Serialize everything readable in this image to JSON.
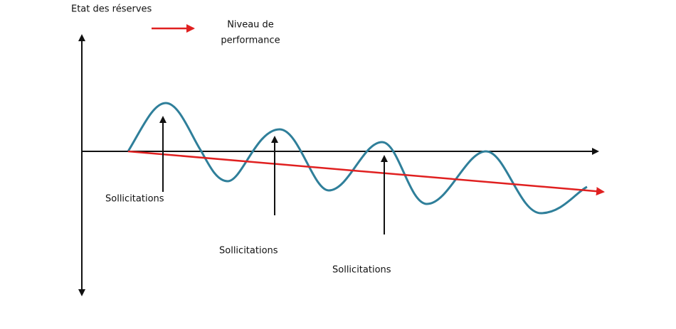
{
  "axis_label": "Etat des réserves",
  "legend": {
    "label_lines": [
      "Niveau de",
      "performance"
    ]
  },
  "annotations": [
    {
      "label": "Sollicitations"
    },
    {
      "label": "Sollicitations"
    },
    {
      "label": "Sollicitations"
    }
  ]
}
